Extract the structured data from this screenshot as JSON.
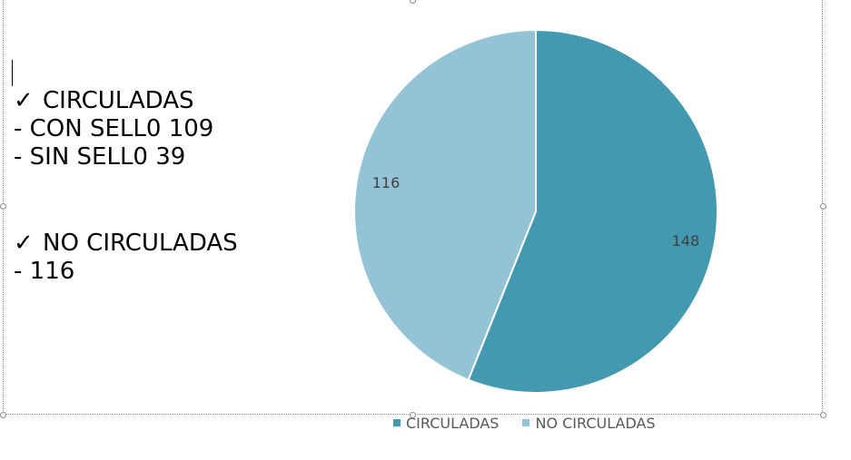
{
  "text_panel": {
    "check_symbol": "✓",
    "group1_title": "CIRCULADAS",
    "group1_line1": "- CON SELL0 109",
    "group1_line2": "- SIN SELL0 39",
    "group2_title": "NO CIRCULADAS",
    "group2_line1": "- 116"
  },
  "chart_data": {
    "type": "pie",
    "title": "",
    "categories": [
      "CIRCULADAS",
      "NO CIRCULADAS"
    ],
    "values": [
      148,
      116
    ],
    "data_labels": [
      "148",
      "116"
    ],
    "colors": [
      "#4299b0",
      "#93c3d4"
    ],
    "legend_position": "bottom",
    "start": "top, clockwise"
  }
}
